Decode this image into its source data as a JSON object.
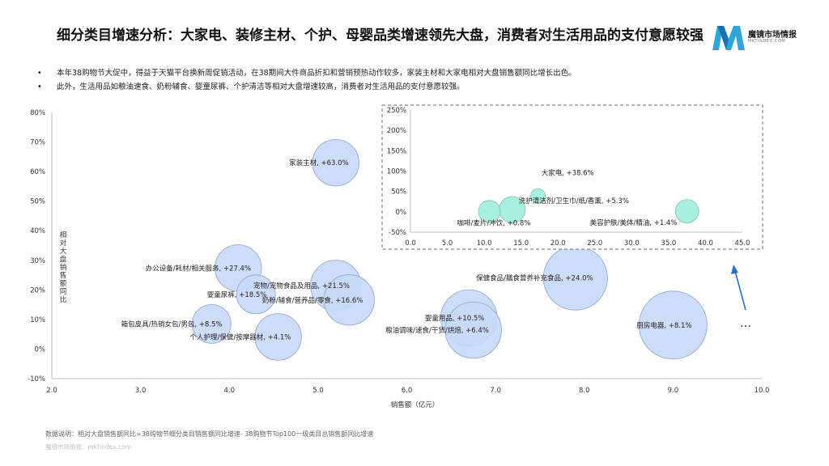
{
  "title": "细分类目增速分析：大家电、装修主材、个护、母婴品类增速领先大盘，消费者对生活用品的支付意愿较强",
  "logo": {
    "name": "魔镜市场情报",
    "domain": "MKTINDEX.COM"
  },
  "bullets": [
    "本年38购物节大促中，得益于天猫平台换新周促销活动，在38期间大件商品折扣和营销预热动作较多，家装主材和大家电相对大盘销售额同比增长出色。",
    "此外，生活用品如粮油速食、奶粉辅食、婴童尿裤、个护清洁等相对大盘增速较高，消费者对生活用品的支付意愿较强。"
  ],
  "ellipsis": "…",
  "footnote": "数据说明：相对大盘销售额同比=38购物节细分类目销售额同比增速- 38购物节Top100一级类目总销售额同比增速",
  "footer": "魔镜市场情报：mktindex.com",
  "colors": {
    "main_bubble": "#c9d9f7",
    "main_stroke": "#8fa6cc",
    "inset_bubble": "#9ff0dd",
    "inset_stroke": "#7fbfb0",
    "arrow": "#2e6ec4"
  },
  "chart_data": [
    {
      "type": "scatter",
      "xlabel": "销售额（亿元）",
      "ylabel": "相对大盘销售额同比",
      "xlim": [
        2.0,
        10.0
      ],
      "ylim": [
        -10,
        80
      ],
      "xticks": [
        "2.0",
        "3.0",
        "4.0",
        "5.0",
        "6.0",
        "7.0",
        "8.0",
        "9.0",
        "10.0"
      ],
      "yticks": [
        "-10%",
        "0%",
        "10%",
        "20%",
        "30%",
        "40%",
        "50%",
        "60%",
        "70%",
        "80%"
      ],
      "grid": false,
      "points": [
        {
          "x": 5.2,
          "y": 63.0,
          "size": 2.4,
          "label": "家装主材, +63.0%"
        },
        {
          "x": 4.1,
          "y": 27.4,
          "size": 2.4,
          "label": "办公设备/耗材/相关服务, +27.4%"
        },
        {
          "x": 5.2,
          "y": 21.5,
          "size": 2.6,
          "label": "宠物/宠物食品及用品, +21.5%"
        },
        {
          "x": 4.3,
          "y": 18.5,
          "size": 2.0,
          "label": "婴童尿裤, +18.5%"
        },
        {
          "x": 5.35,
          "y": 16.6,
          "size": 2.6,
          "label": "奶粉/辅食/营养品/零食, +16.6%"
        },
        {
          "x": 7.9,
          "y": 24.0,
          "size": 3.3,
          "label": "保健食品/膳食营养补充食品, +24.0%"
        },
        {
          "x": 3.8,
          "y": 8.5,
          "size": 2.0,
          "label": "箱包皮具/热销女包/男包, +8.5%"
        },
        {
          "x": 6.7,
          "y": 10.5,
          "size": 2.9,
          "label": "婴童用品, +10.5%"
        },
        {
          "x": 6.75,
          "y": 6.4,
          "size": 2.9,
          "label": "粮油调味/速食/干货/烘焙, +6.4%"
        },
        {
          "x": 4.55,
          "y": 4.1,
          "size": 2.4,
          "label": "个人护理/保健/按摩器材, +4.1%"
        },
        {
          "x": 9.0,
          "y": 8.1,
          "size": 3.5,
          "label": "厨房电器, +8.1%"
        }
      ]
    },
    {
      "type": "scatter",
      "xlim": [
        0.0,
        45.0
      ],
      "ylim": [
        -50,
        250
      ],
      "xticks": [
        "0.0",
        "5.0",
        "10.0",
        "15.0",
        "20.0",
        "25.0",
        "30.0",
        "35.0",
        "40.0",
        "45.0"
      ],
      "yticks": [
        "-50%",
        "0%",
        "50%",
        "100%",
        "150%",
        "200%",
        "250%"
      ],
      "grid": false,
      "legend_placement": "inset, top-right of main chart, dashed border",
      "points": [
        {
          "x": 17.3,
          "y": 38.6,
          "size": 1.0,
          "label": "大家电, +38.6%"
        },
        {
          "x": 13.8,
          "y": 5.3,
          "size": 1.8,
          "label": "洗护清洁剂/卫生巾/纸/香薰, +5.3%"
        },
        {
          "x": 10.7,
          "y": 0.8,
          "size": 1.5,
          "label": "咖啡/麦片/冲饮, +0.8%"
        },
        {
          "x": 37.5,
          "y": 1.4,
          "size": 1.6,
          "label": "美容护肤/美体/精油, +1.4%"
        }
      ]
    }
  ]
}
